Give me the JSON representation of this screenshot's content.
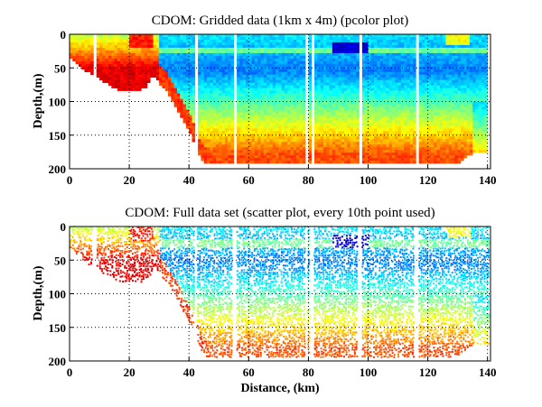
{
  "chart_data": [
    {
      "type": "heatmap",
      "title": "CDOM: Gridded data (1km x 4m) (pcolor plot)",
      "xlabel": "",
      "ylabel": "Depth,(m)",
      "xlim": [
        0,
        141
      ],
      "ylim": [
        200,
        0
      ],
      "xticks": [
        "0",
        "20",
        "40",
        "60",
        "80",
        "100",
        "120",
        "140"
      ],
      "yticks": [
        "0",
        "50",
        "100",
        "150",
        "200"
      ],
      "xtick_values": [
        0,
        20,
        40,
        60,
        80,
        100,
        120,
        140
      ],
      "ytick_values": [
        0,
        50,
        100,
        150,
        200
      ],
      "grid": "dotted",
      "colormap": "jet",
      "cell_size": {
        "dx_km": 1,
        "dz_m": 4
      },
      "bottom_profile": [
        [
          0,
          30
        ],
        [
          3,
          45
        ],
        [
          6,
          55
        ],
        [
          8,
          0
        ],
        [
          9,
          60
        ],
        [
          12,
          70
        ],
        [
          16,
          80
        ],
        [
          20,
          82
        ],
        [
          23,
          82
        ],
        [
          26,
          75
        ],
        [
          28,
          60
        ],
        [
          30,
          70
        ],
        [
          33,
          85
        ],
        [
          36,
          110
        ],
        [
          39,
          135
        ],
        [
          41,
          150
        ],
        [
          43,
          175
        ],
        [
          45,
          192
        ],
        [
          80,
          192
        ],
        [
          100,
          192
        ],
        [
          128,
          192
        ],
        [
          131,
          190
        ],
        [
          133,
          180
        ],
        [
          135,
          175
        ],
        [
          140,
          175
        ]
      ],
      "gaps_km": [
        8,
        42,
        55,
        79,
        81,
        97,
        116
      ],
      "features": {
        "surface_low_cdom_core": {
          "x_range": [
            88,
            100
          ],
          "depth_range": [
            15,
            30
          ]
        },
        "subsurface_minimum_depth_m": 55,
        "deep_high_values_depth_m": 180,
        "nearshore_high_values_x_range": [
          0,
          30
        ]
      }
    },
    {
      "type": "scatter",
      "title": "CDOM: Full data set (scatter plot, every 10th point used)",
      "xlabel": "Distance, (km)",
      "ylabel": "Depth,(m)",
      "xlim": [
        0,
        141
      ],
      "ylim": [
        200,
        0
      ],
      "xticks": [
        "0",
        "20",
        "40",
        "60",
        "80",
        "100",
        "120",
        "140"
      ],
      "yticks": [
        "0",
        "50",
        "100",
        "150",
        "200"
      ],
      "xtick_values": [
        0,
        20,
        40,
        60,
        80,
        100,
        120,
        140
      ],
      "ytick_values": [
        0,
        50,
        100,
        150,
        200
      ],
      "grid": "dotted",
      "colormap": "jet",
      "sampling": "every 10th point"
    }
  ],
  "colors": {
    "jet": [
      "#00008f",
      "#0000ff",
      "#0080ff",
      "#00ffff",
      "#80ff80",
      "#ffff00",
      "#ff8000",
      "#ff0000",
      "#800000"
    ]
  }
}
